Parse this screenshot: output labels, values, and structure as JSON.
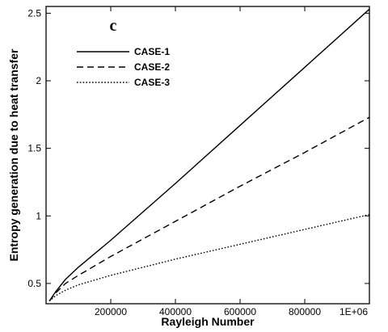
{
  "chart_data": {
    "type": "line",
    "panel_label": "c",
    "xlabel": "Rayleigh Number",
    "ylabel": "Entropy generation due to heat transfer",
    "xlim": [
      0,
      1000000
    ],
    "ylim": [
      0.35,
      2.55
    ],
    "x_ticks": [
      {
        "value": 200000,
        "label": "200000"
      },
      {
        "value": 400000,
        "label": "400000"
      },
      {
        "value": 600000,
        "label": "600000"
      },
      {
        "value": 800000,
        "label": "800000"
      },
      {
        "value": 1000000,
        "label": "1E+06"
      }
    ],
    "y_ticks": [
      {
        "value": 0.5,
        "label": "0.5"
      },
      {
        "value": 1.0,
        "label": "1"
      },
      {
        "value": 1.5,
        "label": "1.5"
      },
      {
        "value": 2.0,
        "label": "2"
      },
      {
        "value": 2.5,
        "label": "2.5"
      }
    ],
    "grid": false,
    "legend_position": "top-left",
    "series": [
      {
        "name": "CASE-1",
        "style": "solid",
        "color": "#000000",
        "x": [
          10000,
          30000,
          60000,
          100000,
          200000,
          400000,
          600000,
          800000,
          1000000
        ],
        "y": [
          0.37,
          0.44,
          0.53,
          0.62,
          0.82,
          1.24,
          1.67,
          2.1,
          2.53
        ]
      },
      {
        "name": "CASE-2",
        "style": "dashed",
        "color": "#000000",
        "x": [
          10000,
          30000,
          60000,
          100000,
          200000,
          400000,
          600000,
          800000,
          1000000
        ],
        "y": [
          0.37,
          0.43,
          0.5,
          0.56,
          0.7,
          0.96,
          1.22,
          1.47,
          1.73
        ]
      },
      {
        "name": "CASE-3",
        "style": "dotted",
        "color": "#000000",
        "x": [
          10000,
          30000,
          60000,
          100000,
          200000,
          400000,
          600000,
          800000,
          1000000
        ],
        "y": [
          0.37,
          0.41,
          0.45,
          0.49,
          0.56,
          0.68,
          0.79,
          0.9,
          1.01
        ]
      }
    ]
  }
}
